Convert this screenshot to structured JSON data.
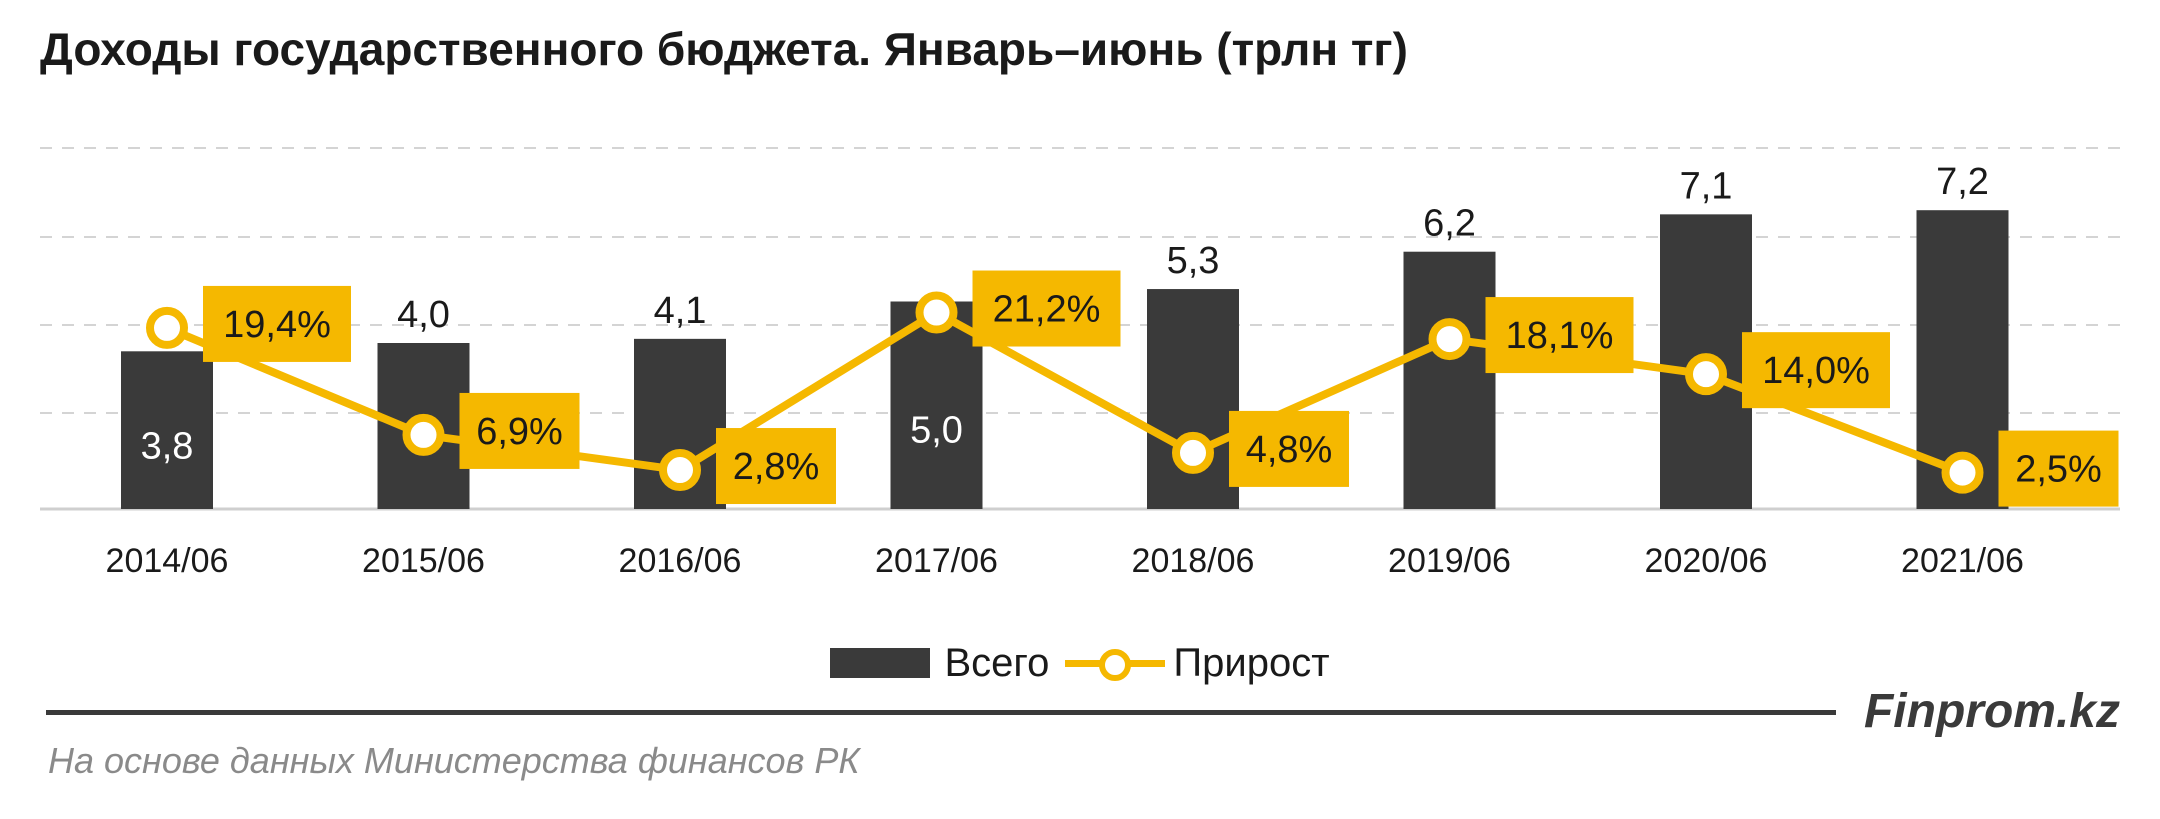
{
  "title": "Доходы государственного бюджета. Январь–июнь (трлн тг)",
  "chart_data": {
    "type": "bar",
    "categories": [
      "2014/06",
      "2015/06",
      "2016/06",
      "2017/06",
      "2018/06",
      "2019/06",
      "2020/06",
      "2021/06"
    ],
    "series": [
      {
        "name": "Всего",
        "type": "bar",
        "values": [
          3.8,
          4.0,
          4.1,
          5.0,
          5.3,
          6.2,
          7.1,
          7.2
        ],
        "labels": [
          "3,8",
          "4,0",
          "4,1",
          "5,0",
          "5,3",
          "6,2",
          "7,1",
          "7,2"
        ],
        "label_inside": [
          true,
          false,
          false,
          true,
          false,
          false,
          false,
          false
        ],
        "color": "#3a3a3a"
      },
      {
        "name": "Прирост",
        "type": "line",
        "values": [
          19.4,
          6.9,
          2.8,
          21.2,
          4.8,
          18.1,
          14.0,
          2.5
        ],
        "labels": [
          "19,4%",
          "6,9%",
          "2,8%",
          "21,2%",
          "4,8%",
          "18,1%",
          "14,0%",
          "2,5%"
        ],
        "color": "#f5b800"
      }
    ],
    "grid": true,
    "legend_position": "bottom"
  },
  "legend": {
    "bar_label": "Всего",
    "line_label": "Прирост"
  },
  "brand": "Finprom.kz",
  "source": "На основе данных Министерства финансов РК"
}
